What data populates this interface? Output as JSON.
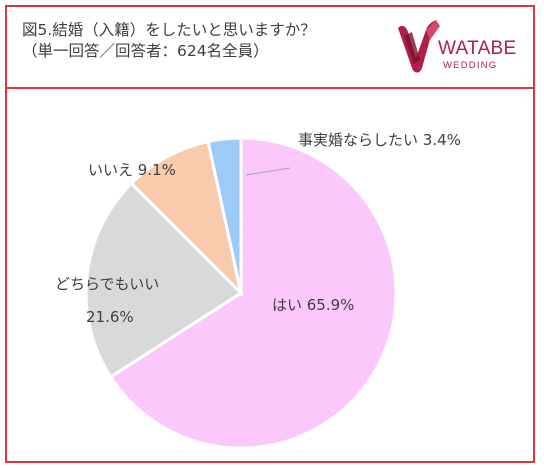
{
  "header": {
    "title_line1": "図5.結婚（入籍）をしたいと思いますか？",
    "title_line2": "（単一回答／回答者：624名全員）"
  },
  "logo": {
    "word": "WATABE",
    "sub": "WEDDING"
  },
  "colors": {
    "frame": "#d9363e",
    "brand": "#b01f45"
  },
  "chart_data": {
    "type": "pie",
    "title": "図5.結婚（入籍）をしたいと思いますか？",
    "subtitle": "（単一回答／回答者：624名全員）",
    "start": "12 o'clock, clockwise",
    "slices": [
      {
        "label": "はい",
        "value": 65.9,
        "text": "はい 65.9%",
        "color": "#fcc8fc"
      },
      {
        "label": "どちらでもいい",
        "value": 21.6,
        "text": "どちらでもいい 21.6%",
        "color": "#d9d9d9"
      },
      {
        "label": "いいえ",
        "value": 9.1,
        "text": "いいえ 9.1%",
        "color": "#f8cbad"
      },
      {
        "label": "事実婚ならしたい",
        "value": 3.4,
        "text": "事実婚ならしたい 3.4%",
        "color": "#9dcbf8"
      }
    ]
  }
}
